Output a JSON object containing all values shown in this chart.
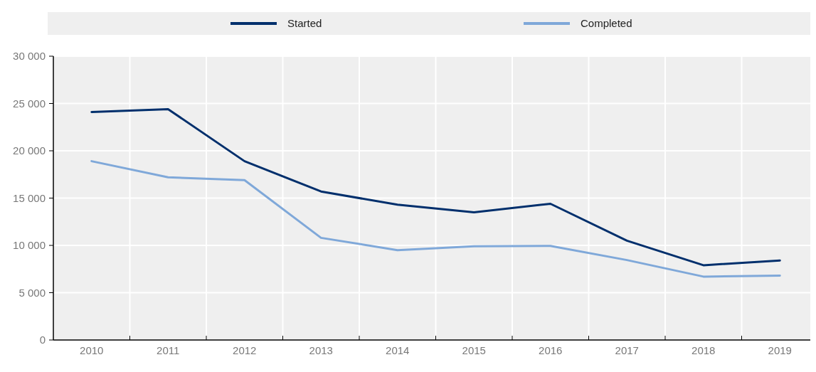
{
  "chart_data": {
    "type": "line",
    "categories": [
      "2010",
      "2011",
      "2012",
      "2013",
      "2014",
      "2015",
      "2016",
      "2017",
      "2018",
      "2019"
    ],
    "series": [
      {
        "name": "Started",
        "color": "#002f6c",
        "values": [
          24100,
          24400,
          18900,
          15700,
          14300,
          13500,
          14400,
          10500,
          7900,
          8400
        ]
      },
      {
        "name": "Completed",
        "color": "#7fa8d9",
        "values": [
          18900,
          17200,
          16900,
          10800,
          9500,
          9900,
          9950,
          8450,
          6700,
          6800
        ]
      }
    ],
    "ylim": [
      0,
      30000
    ],
    "yticks": [
      {
        "value": 0,
        "label": "0"
      },
      {
        "value": 5000,
        "label": "5 000"
      },
      {
        "value": 10000,
        "label": "10 000"
      },
      {
        "value": 15000,
        "label": "15 000"
      },
      {
        "value": 20000,
        "label": "20 000"
      },
      {
        "value": 25000,
        "label": "25 000"
      },
      {
        "value": 30000,
        "label": "30 000"
      }
    ],
    "grid": true,
    "legend": "top",
    "marker": "none",
    "line_style": "solid"
  }
}
